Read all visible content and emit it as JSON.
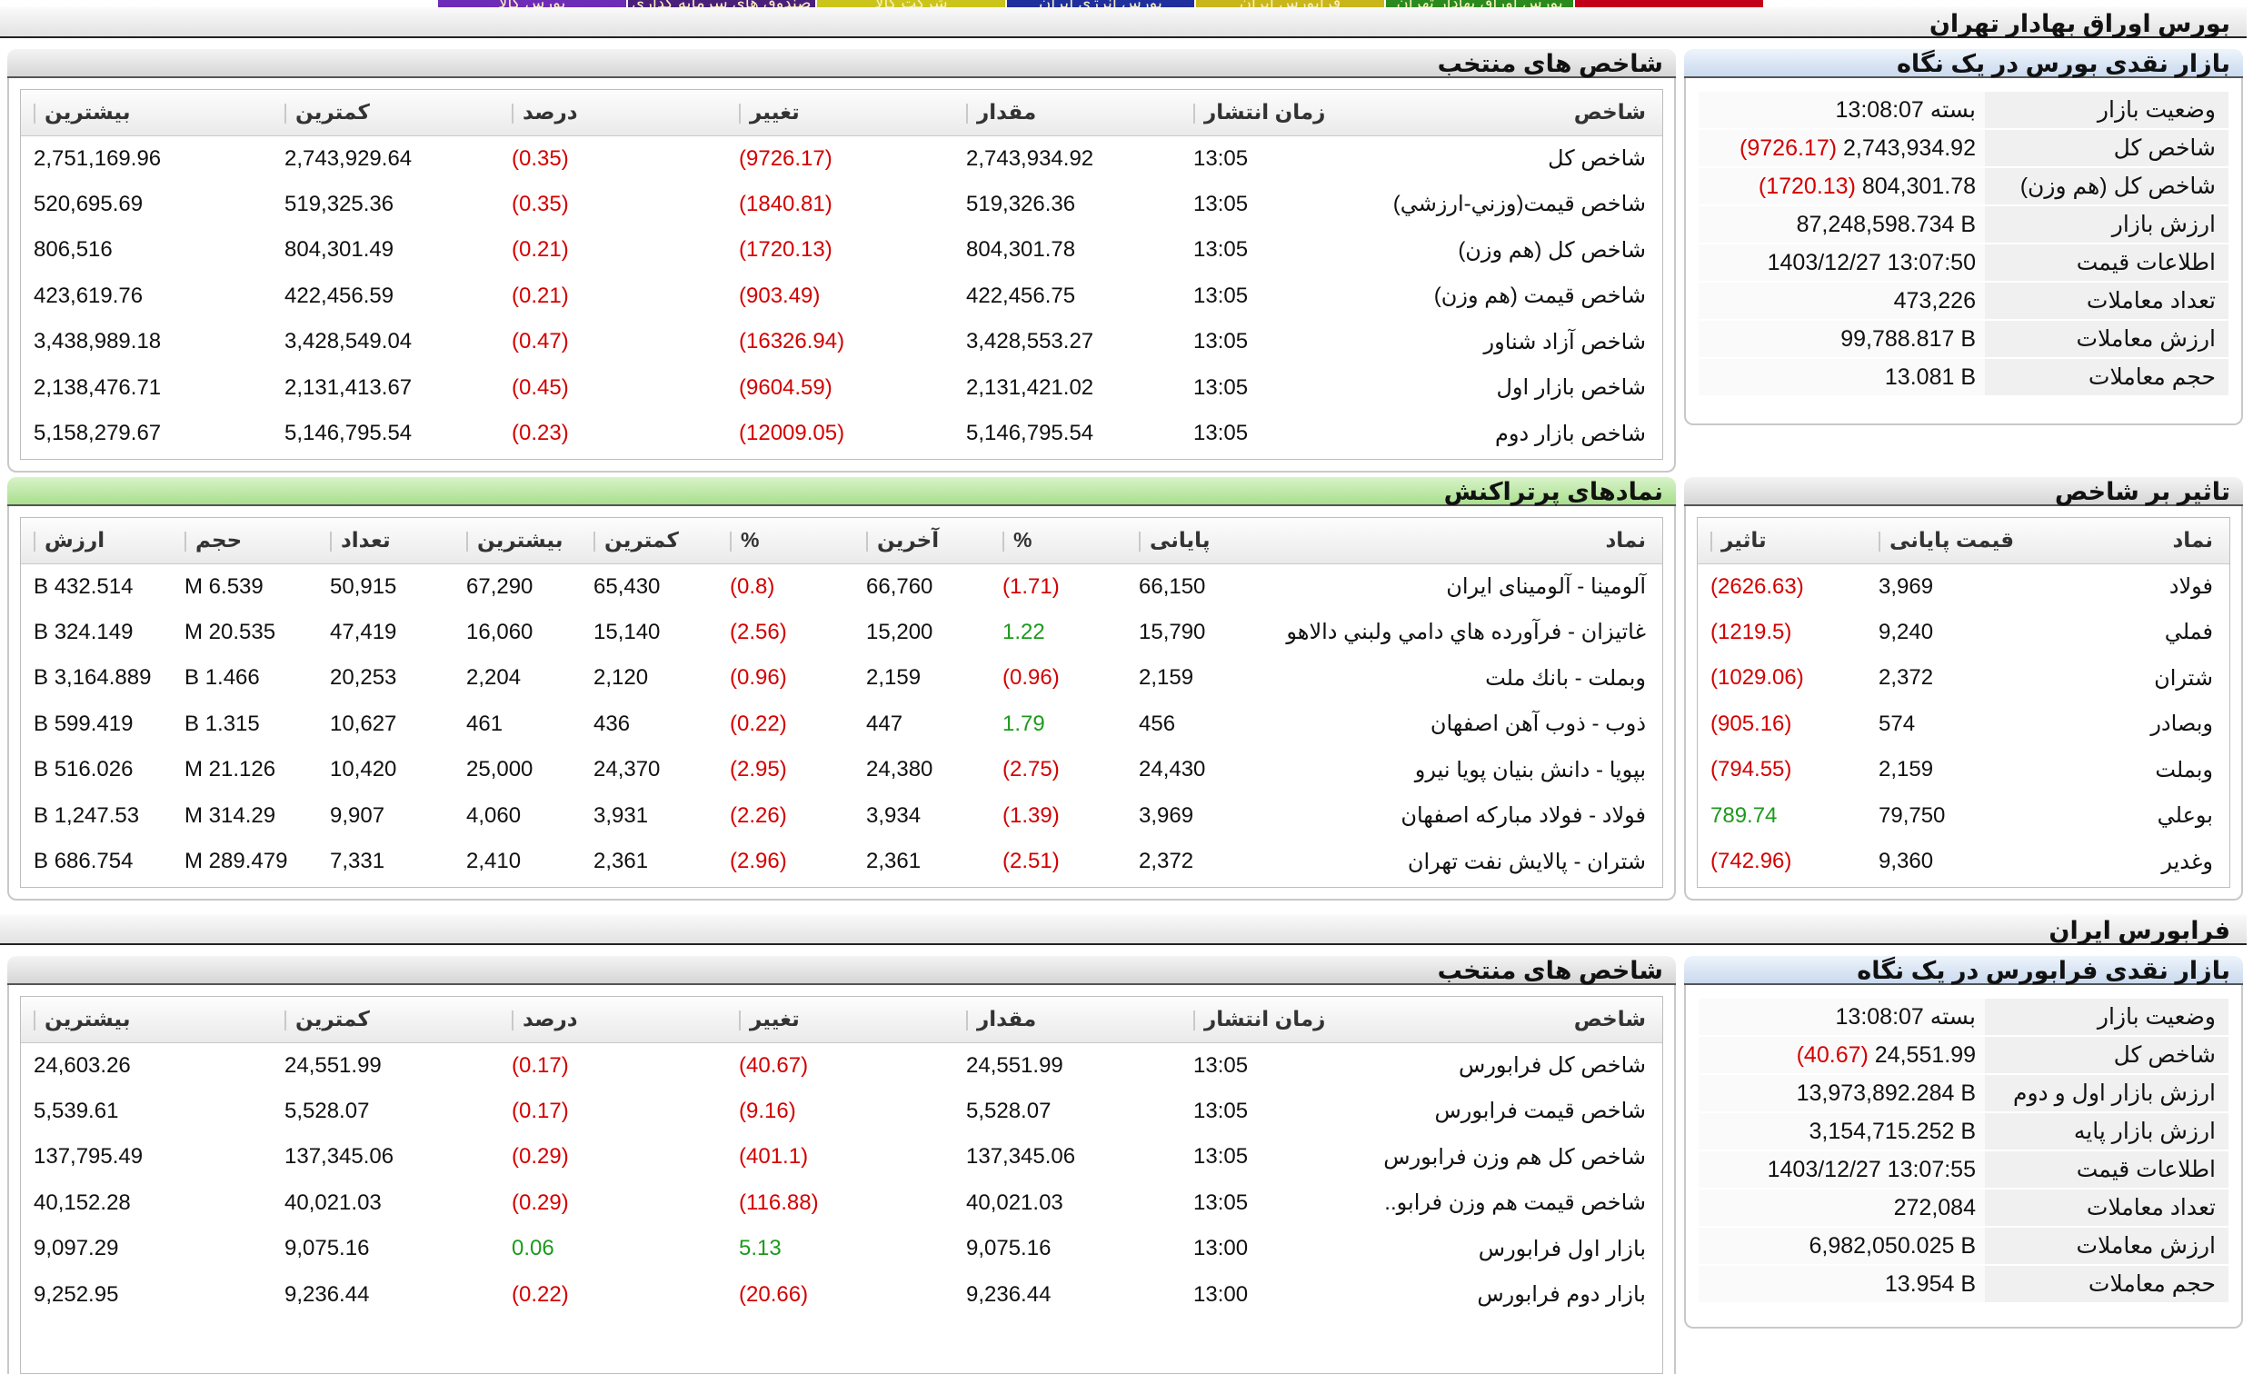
{
  "top_tabs": [
    {
      "label": "",
      "color": "#c2001b"
    },
    {
      "label": "بورس اوراق بهادار تهران",
      "color": "#2a8a1e"
    },
    {
      "label": "فرابورس ایران",
      "color": "#c9b61a"
    },
    {
      "label": "بورس انرژی ایران",
      "color": "#1f2f9e"
    },
    {
      "label": "شرکت کالا",
      "color": "#cbc41b"
    },
    {
      "label": "صندوق های سرمایه گذاری",
      "color": "#4a1f7a"
    },
    {
      "label": "بورس کالا",
      "color": "#6e2bb8"
    }
  ],
  "tehran": {
    "section_title": "بورس اوراق بهادار تهران",
    "glance": {
      "title": "بازار نقدی بورس در یک نگاه",
      "rows": [
        {
          "label": "وضعیت بازار",
          "value": "بسته 13:08:07",
          "change": ""
        },
        {
          "label": "شاخص کل",
          "value": "2,743,934.92",
          "change": "(9726.17)"
        },
        {
          "label": "شاخص کل (هم وزن)",
          "value": "804,301.78",
          "change": "(1720.13)"
        },
        {
          "label": "ارزش بازار",
          "value": "87,248,598.734 B",
          "change": ""
        },
        {
          "label": "اطلاعات قیمت",
          "value": "1403/12/27 13:07:50",
          "change": ""
        },
        {
          "label": "تعداد معاملات",
          "value": "473,226",
          "change": ""
        },
        {
          "label": "ارزش معاملات",
          "value": "99,788.817 B",
          "change": ""
        },
        {
          "label": "حجم معاملات",
          "value": "13.081 B",
          "change": ""
        }
      ]
    },
    "indices": {
      "title": "شاخص های منتخب",
      "headers": [
        "شاخص",
        "زمان انتشار",
        "مقدار",
        "تغییر",
        "درصد",
        "کمترین",
        "بیشترین"
      ],
      "rows": [
        {
          "name": "شاخص كل",
          "time": "13:05",
          "value": "2,743,934.92",
          "change": "(9726.17)",
          "pct": "(0.35)",
          "low": "2,743,929.64",
          "high": "2,751,169.96",
          "dir": "neg"
        },
        {
          "name": "شاخص قيمت(وزني-ارزشي)",
          "time": "13:05",
          "value": "519,326.36",
          "change": "(1840.81)",
          "pct": "(0.35)",
          "low": "519,325.36",
          "high": "520,695.69",
          "dir": "neg"
        },
        {
          "name": "شاخص كل (هم وزن)",
          "time": "13:05",
          "value": "804,301.78",
          "change": "(1720.13)",
          "pct": "(0.21)",
          "low": "804,301.49",
          "high": "806,516",
          "dir": "neg"
        },
        {
          "name": "شاخص قيمت (هم وزن)",
          "time": "13:05",
          "value": "422,456.75",
          "change": "(903.49)",
          "pct": "(0.21)",
          "low": "422,456.59",
          "high": "423,619.76",
          "dir": "neg"
        },
        {
          "name": "شاخص آزاد شناور",
          "time": "13:05",
          "value": "3,428,553.27",
          "change": "(16326.94)",
          "pct": "(0.47)",
          "low": "3,428,549.04",
          "high": "3,438,989.18",
          "dir": "neg"
        },
        {
          "name": "شاخص بازار اول",
          "time": "13:05",
          "value": "2,131,421.02",
          "change": "(9604.59)",
          "pct": "(0.45)",
          "low": "2,131,413.67",
          "high": "2,138,476.71",
          "dir": "neg"
        },
        {
          "name": "شاخص بازار دوم",
          "time": "13:05",
          "value": "5,146,795.54",
          "change": "(12009.05)",
          "pct": "(0.23)",
          "low": "5,146,795.54",
          "high": "5,158,279.67",
          "dir": "neg"
        }
      ]
    },
    "impact": {
      "title": "تاثیر بر شاخص",
      "headers": [
        "نماد",
        "قیمت پایانی",
        "تاثیر"
      ],
      "rows": [
        {
          "sym": "فولاد",
          "price": "3,969",
          "impact": "(2626.63)",
          "dir": "neg"
        },
        {
          "sym": "فملي",
          "price": "9,240",
          "impact": "(1219.5)",
          "dir": "neg"
        },
        {
          "sym": "شتران",
          "price": "2,372",
          "impact": "(1029.06)",
          "dir": "neg"
        },
        {
          "sym": "وبصادر",
          "price": "574",
          "impact": "(905.16)",
          "dir": "neg"
        },
        {
          "sym": "وبملت",
          "price": "2,159",
          "impact": "(794.55)",
          "dir": "neg"
        },
        {
          "sym": "بوعلي",
          "price": "79,750",
          "impact": "789.74",
          "dir": "pos"
        },
        {
          "sym": "وغدير",
          "price": "9,360",
          "impact": "(742.96)",
          "dir": "neg"
        }
      ]
    },
    "active": {
      "title": "نمادهای پرتراکنش",
      "headers": [
        "نماد",
        "پایانی",
        "%",
        "آخرین",
        "%",
        "کمترین",
        "بیشترین",
        "تعداد",
        "حجم",
        "ارزش"
      ],
      "rows": [
        {
          "name": "آلومينا - آلومينای ايران",
          "close": "66,150",
          "cpct": "(1.71)",
          "cdir": "neg",
          "last": "66,760",
          "lpct": "(0.8)",
          "ldir": "neg",
          "low": "65,430",
          "high": "67,290",
          "count": "50,915",
          "vol": "6.539 M",
          "val": "432.514 B"
        },
        {
          "name": "غاتيزان - فرآورده هاي دامي ولبني دالاهو",
          "close": "15,790",
          "cpct": "1.22",
          "cdir": "pos",
          "last": "15,200",
          "lpct": "(2.56)",
          "ldir": "neg",
          "low": "15,140",
          "high": "16,060",
          "count": "47,419",
          "vol": "20.535 M",
          "val": "324.149 B"
        },
        {
          "name": "وبملت - بانك ملت",
          "close": "2,159",
          "cpct": "(0.96)",
          "cdir": "neg",
          "last": "2,159",
          "lpct": "(0.96)",
          "ldir": "neg",
          "low": "2,120",
          "high": "2,204",
          "count": "20,253",
          "vol": "1.466 B",
          "val": "3,164.889 B"
        },
        {
          "name": "ذوب - ذوب آهن اصفهان",
          "close": "456",
          "cpct": "1.79",
          "cdir": "pos",
          "last": "447",
          "lpct": "(0.22)",
          "ldir": "neg",
          "low": "436",
          "high": "461",
          "count": "10,627",
          "vol": "1.315 B",
          "val": "599.419 B"
        },
        {
          "name": "بپويا - دانش بنيان پويا نيرو",
          "close": "24,430",
          "cpct": "(2.75)",
          "cdir": "neg",
          "last": "24,380",
          "lpct": "(2.95)",
          "ldir": "neg",
          "low": "24,370",
          "high": "25,000",
          "count": "10,420",
          "vol": "21.126 M",
          "val": "516.026 B"
        },
        {
          "name": "فولاد - فولاد مباركه اصفهان",
          "close": "3,969",
          "cpct": "(1.39)",
          "cdir": "neg",
          "last": "3,934",
          "lpct": "(2.26)",
          "ldir": "neg",
          "low": "3,931",
          "high": "4,060",
          "count": "9,907",
          "vol": "314.29 M",
          "val": "1,247.53 B"
        },
        {
          "name": "شتران - پالايش نفت تهران",
          "close": "2,372",
          "cpct": "(2.51)",
          "cdir": "neg",
          "last": "2,361",
          "lpct": "(2.96)",
          "ldir": "neg",
          "low": "2,361",
          "high": "2,410",
          "count": "7,331",
          "vol": "289.479 M",
          "val": "686.754 B"
        }
      ]
    }
  },
  "farabourse": {
    "section_title": "فرابورس ایران",
    "glance": {
      "title": "بازار نقدی فرابورس در یک نگاه",
      "rows": [
        {
          "label": "وضعیت بازار",
          "value": "بسته 13:08:07",
          "change": ""
        },
        {
          "label": "شاخص کل",
          "value": "24,551.99",
          "change": "(40.67)"
        },
        {
          "label": "ارزش بازار اول و دوم",
          "value": "13,973,892.284 B",
          "change": ""
        },
        {
          "label": "ارزش بازار پایه",
          "value": "3,154,715.252 B",
          "change": ""
        },
        {
          "label": "اطلاعات قیمت",
          "value": "1403/12/27 13:07:55",
          "change": ""
        },
        {
          "label": "تعداد معاملات",
          "value": "272,084",
          "change": ""
        },
        {
          "label": "ارزش معاملات",
          "value": "6,982,050.025 B",
          "change": ""
        },
        {
          "label": "حجم معاملات",
          "value": "13.954 B",
          "change": ""
        }
      ]
    },
    "indices": {
      "title": "شاخص های منتخب",
      "headers": [
        "شاخص",
        "زمان انتشار",
        "مقدار",
        "تغییر",
        "درصد",
        "کمترین",
        "بیشترین"
      ],
      "rows": [
        {
          "name": "شاخص کل فرابورس",
          "time": "13:05",
          "value": "24,551.99",
          "change": "(40.67)",
          "pct": "(0.17)",
          "low": "24,551.99",
          "high": "24,603.26",
          "dir": "neg"
        },
        {
          "name": "شاخص قیمت فرابورس",
          "time": "13:05",
          "value": "5,528.07",
          "change": "(9.16)",
          "pct": "(0.17)",
          "low": "5,528.07",
          "high": "5,539.61",
          "dir": "neg"
        },
        {
          "name": "شاخص کل هم وزن فرابورس",
          "time": "13:05",
          "value": "137,345.06",
          "change": "(401.1)",
          "pct": "(0.29)",
          "low": "137,345.06",
          "high": "137,795.49",
          "dir": "neg"
        },
        {
          "name": "شاخص قیمت هم وزن فرابو..",
          "time": "13:05",
          "value": "40,021.03",
          "change": "(116.88)",
          "pct": "(0.29)",
          "low": "40,021.03",
          "high": "40,152.28",
          "dir": "neg"
        },
        {
          "name": "بازار اول فرابورس",
          "time": "13:00",
          "value": "9,075.16",
          "change": "5.13",
          "pct": "0.06",
          "low": "9,075.16",
          "high": "9,097.29",
          "dir": "pos"
        },
        {
          "name": "بازار دوم فرابورس",
          "time": "13:00",
          "value": "9,236.44",
          "change": "(20.66)",
          "pct": "(0.22)",
          "low": "9,236.44",
          "high": "9,252.95",
          "dir": "neg"
        }
      ]
    }
  }
}
